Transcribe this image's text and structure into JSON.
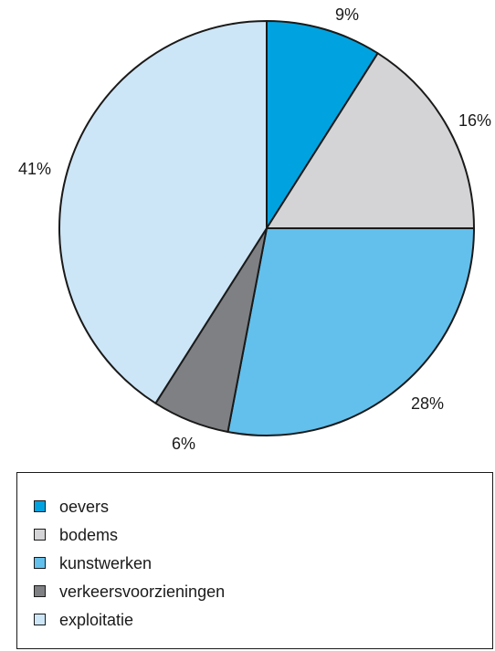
{
  "chart_data": {
    "type": "pie",
    "start_angle": "12 o'clock, clockwise",
    "slices": [
      {
        "label": "oevers",
        "value": 9,
        "value_label": "9%",
        "color": "#00A3E0"
      },
      {
        "label": "bodems",
        "value": 16,
        "value_label": "16%",
        "color": "#D4D4D6"
      },
      {
        "label": "kunstwerken",
        "value": 28,
        "value_label": "28%",
        "color": "#63C0EC"
      },
      {
        "label": "verkeersvoorzieningen",
        "value": 6,
        "value_label": "6%",
        "color": "#7F8083"
      },
      {
        "label": "exploitatie",
        "value": 41,
        "value_label": "41%",
        "color": "#CDE6F7"
      }
    ],
    "legend_placement": "bottom"
  },
  "legend": {
    "items": [
      {
        "label": "oevers",
        "color": "#00A3E0"
      },
      {
        "label": "bodems",
        "color": "#D4D4D6"
      },
      {
        "label": "kunstwerken",
        "color": "#63C0EC"
      },
      {
        "label": "verkeersvoorzieningen",
        "color": "#7F8083"
      },
      {
        "label": "exploitatie",
        "color": "#CDE6F7"
      }
    ]
  }
}
